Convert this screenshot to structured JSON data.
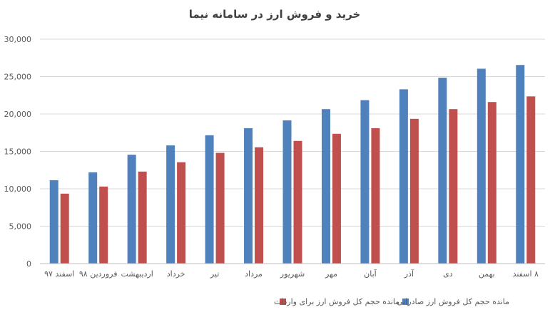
{
  "chart_data": {
    "type": "bar",
    "title": "خرید و فروش ارز در سامانه نیما",
    "categories": [
      "اسفند ۹۷",
      "فروردین ۹۸",
      "اردیبهشت",
      "خرداد",
      "تیر",
      "مرداد",
      "شهریور",
      "مهر",
      "آبان",
      "آذر",
      "دی",
      "بهمن",
      "۸ اسفند"
    ],
    "series": [
      {
        "name": "مانده حجم کل فروش ارز صادراتی",
        "color": "#4F81BD",
        "values": [
          11150,
          12200,
          14550,
          15800,
          17150,
          18100,
          19150,
          20650,
          21850,
          23300,
          24850,
          26050,
          26550
        ]
      },
      {
        "name": "مانده حجم کل فروش ارز برای واردات",
        "color": "#C0504D",
        "values": [
          9350,
          10300,
          12300,
          13550,
          14800,
          15550,
          16400,
          17350,
          18100,
          19350,
          20650,
          21600,
          22350
        ]
      }
    ],
    "ylim": [
      0,
      30000
    ],
    "yticks": [
      "0",
      "5,000",
      "10,000",
      "15,000",
      "20,000",
      "25,000",
      "30,000"
    ],
    "grid": true,
    "legend": "bottom"
  }
}
